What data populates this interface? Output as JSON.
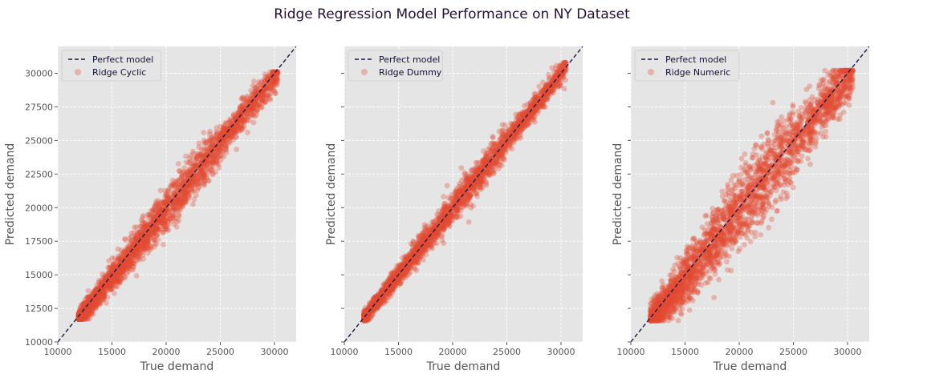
{
  "figure": {
    "title": "Ridge Regression Model Performance on NY Dataset"
  },
  "colors": {
    "background": "#E5E5E5",
    "grid": "#FFFFFF",
    "points": "#E24A33",
    "perfect_line": "#1A1A4A",
    "text": "#555555"
  },
  "chart_data": [
    {
      "type": "scatter",
      "title": "",
      "xlabel": "True demand",
      "ylabel": "Predicted demand",
      "xlim": [
        10000,
        32000
      ],
      "ylim": [
        10000,
        32000
      ],
      "x_ticks": [
        "10000",
        "15000",
        "20000",
        "25000",
        "30000"
      ],
      "y_ticks": [
        "10000",
        "12500",
        "15000",
        "17500",
        "20000",
        "22500",
        "25000",
        "27500",
        "30000"
      ],
      "show_y_tick_labels": true,
      "grid": true,
      "legend": {
        "position": "top-left",
        "entries": [
          "Perfect model",
          "Ridge Cyclic"
        ]
      },
      "series": [
        {
          "name": "Perfect model",
          "kind": "line",
          "style": "dashed",
          "x": [
            10000,
            32000
          ],
          "y": [
            10000,
            32000
          ]
        },
        {
          "name": "Ridge Cyclic",
          "kind": "scatter",
          "x_range": [
            11900,
            30300
          ],
          "y_range": [
            11900,
            29900
          ],
          "slope": 1.0,
          "intercept": -200,
          "spread": 550
        }
      ]
    },
    {
      "type": "scatter",
      "title": "",
      "xlabel": "True demand",
      "ylabel": "Predicted demand",
      "xlim": [
        10000,
        32000
      ],
      "ylim": [
        10000,
        32000
      ],
      "x_ticks": [
        "10000",
        "15000",
        "20000",
        "25000",
        "30000"
      ],
      "y_ticks": [
        "10000",
        "12500",
        "15000",
        "17500",
        "20000",
        "22500",
        "25000",
        "27500",
        "30000"
      ],
      "show_y_tick_labels": false,
      "grid": true,
      "legend": {
        "position": "top-left",
        "entries": [
          "Perfect model",
          "Ridge Dummy"
        ]
      },
      "series": [
        {
          "name": "Perfect model",
          "kind": "line",
          "style": "dashed",
          "x": [
            10000,
            32000
          ],
          "y": [
            10000,
            32000
          ]
        },
        {
          "name": "Ridge Dummy",
          "kind": "scatter",
          "x_range": [
            11800,
            30500
          ],
          "y_range": [
            11800,
            30600
          ],
          "slope": 1.0,
          "intercept": 0,
          "spread": 400
        }
      ]
    },
    {
      "type": "scatter",
      "title": "",
      "xlabel": "True demand",
      "ylabel": "Predicted demand",
      "xlim": [
        10000,
        32000
      ],
      "ylim": [
        10000,
        32000
      ],
      "x_ticks": [
        "10000",
        "15000",
        "20000",
        "25000",
        "30000"
      ],
      "y_ticks": [
        "10000",
        "12500",
        "15000",
        "17500",
        "20000",
        "22500",
        "25000",
        "27500",
        "30000"
      ],
      "show_y_tick_labels": false,
      "grid": true,
      "legend": {
        "position": "top-left",
        "entries": [
          "Perfect model",
          "Ridge Numeric"
        ]
      },
      "series": [
        {
          "name": "Perfect model",
          "kind": "line",
          "style": "dashed",
          "x": [
            10000,
            32000
          ],
          "y": [
            10000,
            32000
          ]
        },
        {
          "name": "Ridge Numeric",
          "kind": "scatter",
          "x_range": [
            11800,
            30500
          ],
          "y_range": [
            11800,
            30000
          ],
          "slope": 1.0,
          "intercept": -300,
          "spread": 1000
        }
      ]
    }
  ]
}
